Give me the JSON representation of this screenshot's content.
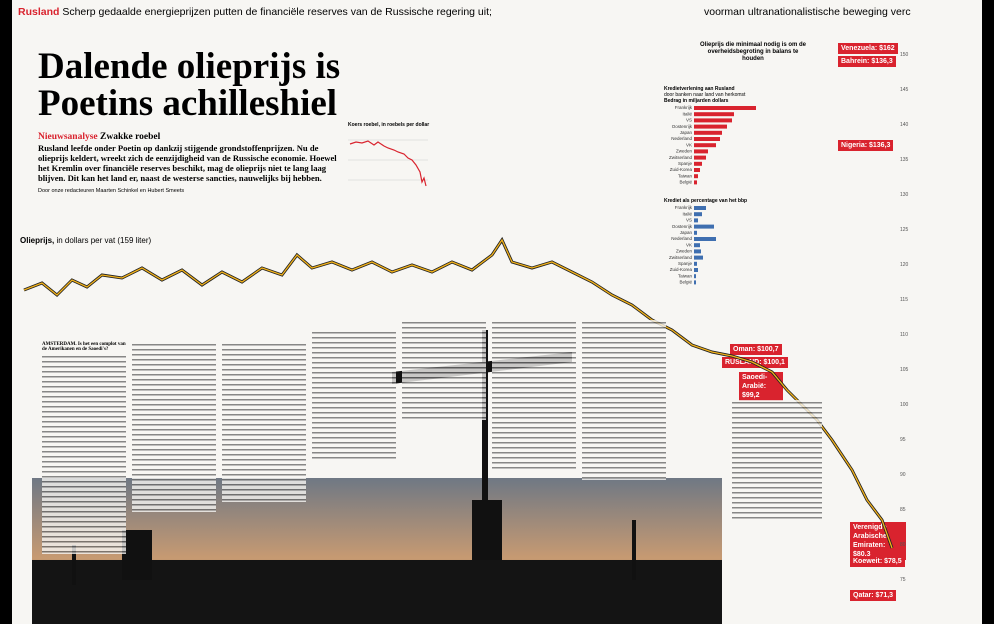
{
  "header": {
    "section": "Rusland",
    "kicker": "Scherp gedaalde energieprijzen putten de financiële reserves van de Russische regering uit;",
    "kicker_right": "voorman ultranationalistische beweging verc"
  },
  "headline": [
    "Dalende olieprijs is",
    "Poetins achilleshiel"
  ],
  "intro": {
    "label": "Nieuwsanalyse",
    "title": "Zwakke roebel",
    "text": "Rusland leefde onder Poetin op dankzij stijgende grondstoffenprijzen. Nu de olieprijs keldert, wreekt zich de eenzijdigheid van de Russische economie. Hoewel het Kremlin over financiële reserves beschikt, mag de olieprijs niet te lang laag blijven. Dit kan het land er, naast de westerse sancties, nauwelijks bij hebben.",
    "byline": "Door onze redacteuren Maarten Schinkel en Hubert Smeets"
  },
  "ruble_chart": {
    "title": "Koers roebel, in roebels per dollar"
  },
  "oil_chart": {
    "title": "Olieprijs,",
    "subtitle": "in dollars per vat (159 liter)",
    "ticks": [
      "150",
      "145",
      "140",
      "135",
      "130",
      "125",
      "120",
      "115",
      "110",
      "105",
      "100",
      "95",
      "90",
      "85",
      "80",
      "75"
    ]
  },
  "breakeven": {
    "title": "Olieprijs die minimaal nodig is om de overheidsbegroting in balans te houden",
    "labels": [
      "Venezuela: $162",
      "Bahrein: $136,3",
      "Nigeria: $136,3",
      "Oman: $100,7",
      "RUSLAND: $100,1",
      "Saoedi-Arabië: $99,2",
      "Verenigde Arabische Emiraten: $80,3",
      "Koeweit: $78,5",
      "Qatar: $71,3"
    ]
  },
  "credit": {
    "title": "Kredietverlening aan Rusland",
    "subtitle": "door banken naar land van herkomst",
    "unit": "Bedrag in miljarden dollars",
    "pct_title": "Krediet als percentage van het bbp",
    "countries": [
      "Frankrijk",
      "Italië",
      "VS",
      "Oostenrijk",
      "Japan",
      "Nederland",
      "VK",
      "Zweden",
      "Zwitserland",
      "Spanje",
      "Zuid-Korea",
      "Taiwan",
      "België"
    ]
  },
  "body_start": "AMSTERDAM. Is het een complot van de Amerikanen en de Saoedi's?"
}
